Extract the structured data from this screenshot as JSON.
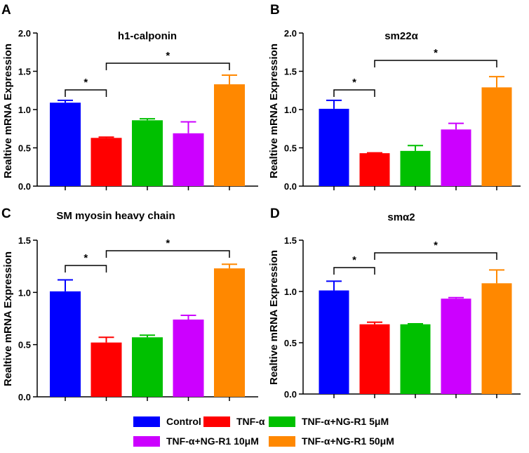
{
  "figure": {
    "group_labels": [
      "Control",
      "TNF-α",
      "TNF-α+NG-R1 5μM",
      "TNF-α+NG-R1 10μM",
      "TNF-α+NG-R1 50μM"
    ],
    "group_colors": [
      "#0000FF",
      "#FF0000",
      "#00C000",
      "#CC00FF",
      "#FF8800"
    ],
    "significance_marker": "*"
  },
  "chart_data": [
    {
      "type": "bar",
      "panel": "A",
      "title": "h1-calponin",
      "ylabel": "Realtive mRNA Expression",
      "xlabel": "",
      "ylim": [
        0,
        2.0
      ],
      "yticks": [
        "0.0",
        "0.5",
        "1.0",
        "1.5",
        "2.0"
      ],
      "categories": [
        "Control",
        "TNF-α",
        "TNF-α+NG-R1 5μM",
        "TNF-α+NG-R1 10μM",
        "TNF-α+NG-R1 50μM"
      ],
      "values": [
        1.09,
        0.63,
        0.86,
        0.69,
        1.33
      ],
      "errors": [
        0.03,
        0.01,
        0.02,
        0.15,
        0.12
      ],
      "brackets": [
        {
          "from": 0,
          "to": 1,
          "label": "*"
        },
        {
          "from": 1,
          "to": 4,
          "label": "*"
        }
      ]
    },
    {
      "type": "bar",
      "panel": "B",
      "title": "sm22α",
      "ylabel": "Realtive mRNA Expression",
      "xlabel": "",
      "ylim": [
        0,
        2.0
      ],
      "yticks": [
        "0.0",
        "0.5",
        "1.0",
        "1.5",
        "2.0"
      ],
      "categories": [
        "Control",
        "TNF-α",
        "TNF-α+NG-R1 5μM",
        "TNF-α+NG-R1 10μM",
        "TNF-α+NG-R1 50μM"
      ],
      "values": [
        1.01,
        0.43,
        0.46,
        0.74,
        1.29
      ],
      "errors": [
        0.11,
        0.005,
        0.07,
        0.08,
        0.14
      ],
      "brackets": [
        {
          "from": 0,
          "to": 1,
          "label": "*"
        },
        {
          "from": 1,
          "to": 4,
          "label": "*"
        }
      ]
    },
    {
      "type": "bar",
      "panel": "C",
      "title": "SM myosin heavy chain",
      "ylabel": "Realtive mRNA Expression",
      "xlabel": "",
      "ylim": [
        0,
        1.5
      ],
      "yticks": [
        "0.0",
        "0.5",
        "1.0",
        "1.5"
      ],
      "categories": [
        "Control",
        "TNF-α",
        "TNF-α+NG-R1 5μM",
        "TNF-α+NG-R1 10μM",
        "TNF-α+NG-R1 50μM"
      ],
      "values": [
        1.01,
        0.52,
        0.57,
        0.74,
        1.23
      ],
      "errors": [
        0.11,
        0.05,
        0.02,
        0.04,
        0.04
      ],
      "brackets": [
        {
          "from": 0,
          "to": 1,
          "label": "*"
        },
        {
          "from": 1,
          "to": 4,
          "label": "*"
        }
      ]
    },
    {
      "type": "bar",
      "panel": "D",
      "title": "smα2",
      "ylabel": "Realtive mRNA Expression",
      "xlabel": "",
      "ylim": [
        0,
        1.5
      ],
      "yticks": [
        "0.0",
        "0.5",
        "1.0",
        "1.5"
      ],
      "categories": [
        "Control",
        "TNF-α",
        "TNF-α+NG-R1 5μM",
        "TNF-α+NG-R1 10μM",
        "TNF-α+NG-R1 50μM"
      ],
      "values": [
        1.01,
        0.68,
        0.68,
        0.93,
        1.08
      ],
      "errors": [
        0.09,
        0.02,
        0.005,
        0.01,
        0.13
      ],
      "brackets": [
        {
          "from": 0,
          "to": 1,
          "label": "*"
        },
        {
          "from": 1,
          "to": 4,
          "label": "*"
        }
      ]
    }
  ]
}
